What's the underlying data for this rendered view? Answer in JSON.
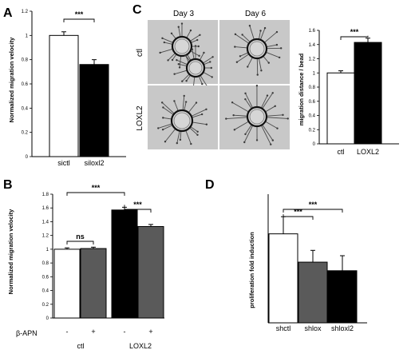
{
  "panels": {
    "A": {
      "letter": "A"
    },
    "B": {
      "letter": "B"
    },
    "C": {
      "letter": "C",
      "day_labels": [
        "Day 3",
        "Day 6"
      ],
      "row_labels": [
        "ctl",
        "LOXL2"
      ]
    },
    "D": {
      "letter": "D"
    }
  },
  "colors": {
    "white": "#ffffff",
    "black": "#000000",
    "dark_gray": "#5a5a5a",
    "bar_outline": "#000000",
    "micro_bg": "#c8c8c8"
  },
  "chart_data": [
    {
      "id": "A",
      "type": "bar",
      "ylabel": "Normalized migration velocity",
      "categories": [
        "sictl",
        "siloxl2"
      ],
      "values": [
        1.0,
        0.76
      ],
      "errors": [
        0.03,
        0.04
      ],
      "bar_colors": [
        "#ffffff",
        "#000000"
      ],
      "ylim": [
        0,
        1.2
      ],
      "yticks": [
        "0",
        "0.2",
        "0.4",
        "0.6",
        "0.8",
        "1",
        "1.2"
      ],
      "significance": [
        {
          "label": "***",
          "from": 0,
          "to": 1
        }
      ],
      "grid": false
    },
    {
      "id": "B",
      "type": "bar",
      "ylabel": "Normalized migration velocity",
      "categories": [
        "-",
        "+",
        "-",
        "+"
      ],
      "groups": [
        "ctl",
        "LOXL2"
      ],
      "row_label": "β-APN",
      "values": [
        1.0,
        1.01,
        1.57,
        1.33
      ],
      "errors": [
        0.02,
        0.02,
        0.04,
        0.03
      ],
      "bar_colors": [
        "#ffffff",
        "#5a5a5a",
        "#000000",
        "#5a5a5a"
      ],
      "ylim": [
        0,
        1.8
      ],
      "yticks": [
        "0",
        "0.2",
        "0.4",
        "0.6",
        "0.8",
        "1",
        "1.2",
        "1.4",
        "1.6",
        "1.8"
      ],
      "significance": [
        {
          "label": "ns",
          "from": 0,
          "to": 1
        },
        {
          "label": "***",
          "from": 0,
          "to": 2
        },
        {
          "label": "***",
          "from": 2,
          "to": 3
        }
      ],
      "grid": false
    },
    {
      "id": "C",
      "type": "bar",
      "ylabel": "migration distance / bead",
      "categories": [
        "ctl",
        "LOXL2"
      ],
      "values": [
        1.0,
        1.43
      ],
      "errors": [
        0.03,
        0.06
      ],
      "bar_colors": [
        "#ffffff",
        "#000000"
      ],
      "ylim": [
        0,
        1.6
      ],
      "yticks": [
        "0",
        "0.2",
        "0.4",
        "0.6",
        "0.8",
        "1",
        "1.2",
        "1.4",
        "1.6"
      ],
      "significance": [
        {
          "label": "***",
          "from": 0,
          "to": 1
        }
      ],
      "grid": false
    },
    {
      "id": "D",
      "type": "bar",
      "ylabel": "proliferation fold induction",
      "categories": [
        "shctl",
        "shlox",
        "shloxl2"
      ],
      "values": [
        4.15,
        2.83,
        2.43
      ],
      "errors": [
        0.8,
        0.55,
        0.7
      ],
      "bar_colors": [
        "#ffffff",
        "#5a5a5a",
        "#000000"
      ],
      "ylim": [
        0,
        6
      ],
      "yticks": [],
      "significance": [
        {
          "label": "***",
          "from": 0,
          "to": 1
        },
        {
          "label": "***",
          "from": 0,
          "to": 2
        }
      ],
      "grid": false
    }
  ]
}
